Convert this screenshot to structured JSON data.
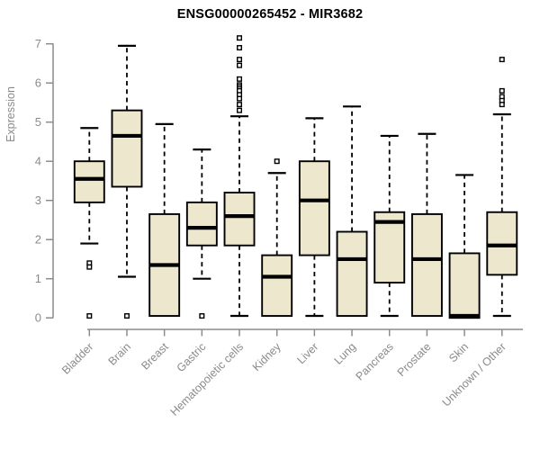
{
  "chart_data": {
    "type": "boxplot",
    "title": "ENSG00000265452 - MIR3682",
    "xlabel": "",
    "ylabel": "Expression",
    "ylim": [
      0,
      7
    ],
    "yticks": [
      0,
      1,
      2,
      3,
      4,
      5,
      6,
      7
    ],
    "grid": false,
    "legend": false,
    "colors": {
      "box_fill": "#ede8cd",
      "box_border": "#000000",
      "median": "#000000",
      "whisker": "#000000",
      "axis": "#8c8c8c",
      "tick_label": "#8a8a8a",
      "title": "#000000",
      "background": "#ffffff"
    },
    "categories": [
      "Bladder",
      "Brain",
      "Breast",
      "Gastric",
      "Hematopoietic cells",
      "Kidney",
      "Liver",
      "Lung",
      "Pancreas",
      "Prostate",
      "Skin",
      "Unknown / Other"
    ],
    "series": [
      {
        "label": "Bladder",
        "whisker_low": 1.9,
        "q1": 2.95,
        "median": 3.55,
        "q3": 4.0,
        "whisker_high": 4.85,
        "outliers": [
          1.4,
          1.3,
          0.05
        ]
      },
      {
        "label": "Brain",
        "whisker_low": 1.05,
        "q1": 3.35,
        "median": 4.65,
        "q3": 5.3,
        "whisker_high": 6.95,
        "outliers": [
          0.05
        ]
      },
      {
        "label": "Breast",
        "whisker_low": 0.05,
        "q1": 0.05,
        "median": 1.35,
        "q3": 2.65,
        "whisker_high": 4.95,
        "outliers": []
      },
      {
        "label": "Gastric",
        "whisker_low": 1.0,
        "q1": 1.85,
        "median": 2.3,
        "q3": 2.95,
        "whisker_high": 4.3,
        "outliers": [
          0.05
        ]
      },
      {
        "label": "Hematopoietic cells",
        "whisker_low": 0.05,
        "q1": 1.85,
        "median": 2.6,
        "q3": 3.2,
        "whisker_high": 5.15,
        "outliers": [
          7.15,
          6.9,
          6.6,
          6.45,
          6.1,
          5.95,
          5.9,
          5.85,
          5.8,
          5.7,
          5.6,
          5.45,
          5.3
        ]
      },
      {
        "label": "Kidney",
        "whisker_low": 0.05,
        "q1": 0.05,
        "median": 1.05,
        "q3": 1.6,
        "whisker_high": 3.7,
        "outliers": [
          4.0
        ]
      },
      {
        "label": "Liver",
        "whisker_low": 0.05,
        "q1": 1.6,
        "median": 3.0,
        "q3": 4.0,
        "whisker_high": 5.1,
        "outliers": []
      },
      {
        "label": "Lung",
        "whisker_low": 0.05,
        "q1": 0.05,
        "median": 1.5,
        "q3": 2.2,
        "whisker_high": 5.4,
        "outliers": []
      },
      {
        "label": "Pancreas",
        "whisker_low": 0.05,
        "q1": 0.9,
        "median": 2.45,
        "q3": 2.7,
        "whisker_high": 4.65,
        "outliers": []
      },
      {
        "label": "Prostate",
        "whisker_low": 0.05,
        "q1": 0.05,
        "median": 1.5,
        "q3": 2.65,
        "whisker_high": 4.7,
        "outliers": []
      },
      {
        "label": "Skin",
        "whisker_low": 0.0,
        "q1": 0.0,
        "median": 0.05,
        "q3": 1.65,
        "whisker_high": 3.65,
        "outliers": []
      },
      {
        "label": "Unknown / Other",
        "whisker_low": 0.05,
        "q1": 1.1,
        "median": 1.85,
        "q3": 2.7,
        "whisker_high": 5.2,
        "outliers": [
          6.6,
          5.8,
          5.65,
          5.55,
          5.45
        ]
      }
    ]
  }
}
